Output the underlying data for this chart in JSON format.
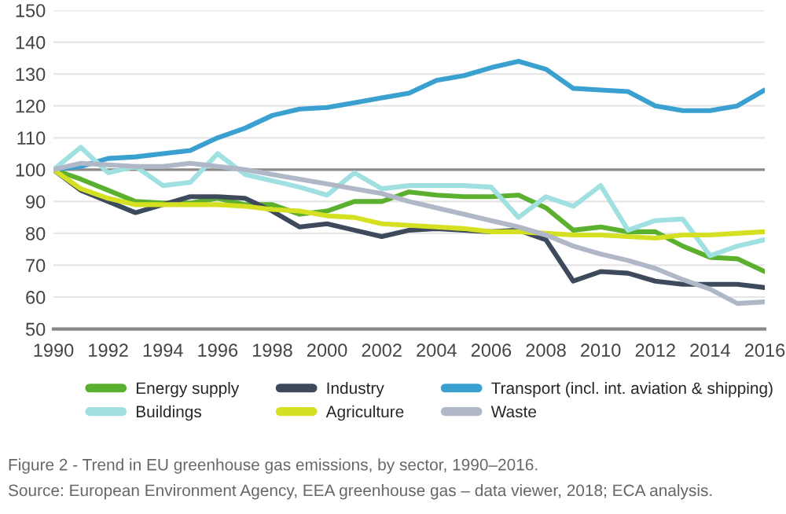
{
  "chart_data": {
    "type": "line",
    "x": [
      1990,
      1991,
      1992,
      1993,
      1994,
      1995,
      1996,
      1997,
      1998,
      1999,
      2000,
      2001,
      2002,
      2003,
      2004,
      2005,
      2006,
      2007,
      2008,
      2009,
      2010,
      2011,
      2012,
      2013,
      2014,
      2015,
      2016
    ],
    "series": [
      {
        "name": "Energy supply",
        "color": "#5cb030",
        "values": [
          100,
          97,
          93.5,
          90,
          89.5,
          89.5,
          91,
          89,
          89,
          86,
          87,
          90,
          90,
          93,
          92,
          91.5,
          91.5,
          92,
          88,
          81,
          82,
          80.5,
          80.5,
          76,
          72.5,
          72,
          68
        ]
      },
      {
        "name": "Industry",
        "color": "#3d4a5c",
        "values": [
          100,
          93.5,
          90,
          86.5,
          89,
          91.5,
          91.5,
          91,
          87,
          82,
          83,
          81,
          79,
          81,
          81.5,
          81,
          80.5,
          81,
          78,
          65,
          68,
          67.5,
          65,
          64,
          64,
          64,
          63
        ]
      },
      {
        "name": "Transport (incl. int. aviation & shipping)",
        "color": "#3aa0d0",
        "values": [
          100,
          101,
          103.5,
          104,
          105,
          106,
          110,
          113,
          117,
          119,
          119.5,
          121,
          122.5,
          124,
          128,
          129.5,
          132,
          134,
          131.5,
          125.5,
          125,
          124.5,
          120,
          118.5,
          118.5,
          120,
          125
        ]
      },
      {
        "name": "Buildings",
        "color": "#a0e0e0",
        "values": [
          100,
          107,
          99,
          101,
          95,
          96,
          105,
          98.5,
          96.5,
          94.5,
          92,
          99,
          94,
          95,
          95,
          95,
          94.5,
          85,
          91.5,
          88.5,
          95,
          81,
          84,
          84.5,
          73,
          76,
          78
        ]
      },
      {
        "name": "Agriculture",
        "color": "#d4e021",
        "values": [
          100,
          94,
          91,
          89,
          89,
          89,
          89,
          88.5,
          87.5,
          87,
          85.5,
          85,
          83,
          82.5,
          82,
          81.5,
          80.5,
          80.5,
          80,
          79.5,
          79.5,
          79,
          78.5,
          79.5,
          79.5,
          80,
          80.5
        ]
      },
      {
        "name": "Waste",
        "color": "#b0b8c8",
        "values": [
          100,
          102,
          101.5,
          101,
          101,
          102,
          101,
          100,
          98.5,
          97,
          95.5,
          94,
          92.5,
          90,
          88,
          86,
          84,
          82,
          79.5,
          76,
          73.5,
          71.5,
          69,
          65.5,
          62.5,
          58,
          58.5
        ]
      }
    ],
    "xlim": [
      1990,
      2016
    ],
    "xticks": [
      1990,
      1992,
      1994,
      1996,
      1998,
      2000,
      2002,
      2004,
      2006,
      2008,
      2010,
      2012,
      2014,
      2016
    ],
    "ylim": [
      50,
      150
    ],
    "yticks": [
      50,
      60,
      70,
      80,
      90,
      100,
      110,
      120,
      130,
      140,
      150
    ],
    "grid": "y",
    "legend": "bottom",
    "marker": "none",
    "line_style": "solid",
    "ref_lines": [
      {
        "axis": "y",
        "value": 100,
        "label": null,
        "color": "#8a8a8a"
      }
    ],
    "annotations": [
      "Figure 2 - Trend in EU greenhouse gas emissions, by sector, 1990–2016.",
      "Source: European Environment Agency, EEA greenhouse gas – data viewer, 2018; ECA analysis."
    ]
  }
}
